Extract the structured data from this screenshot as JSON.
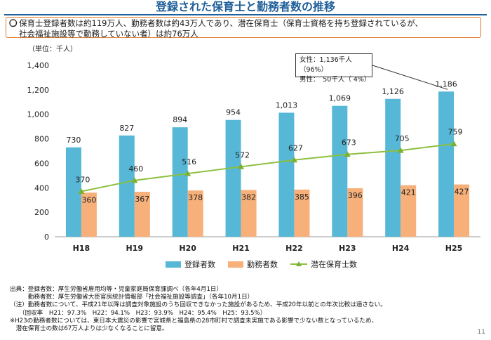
{
  "title": "登録された保育士と勤務者数の推移",
  "summary": {
    "mark": "〇",
    "line1": "保育士登録者数は約119万人、勤務者数は約43万人であり、潜在保育士（保育士資格を持ち登録されているが、",
    "line2": "社会福祉施設等で勤務していない者）は約76万人"
  },
  "callout": {
    "line1": "女性：1,136千人（96%）",
    "line2": "男性：　50千人（ 4%）"
  },
  "colors": {
    "registered": "#57b7d6",
    "employed": "#f7b07a",
    "potential": "#8cbf3f",
    "title": "#1f5f9a",
    "box_border": "#e07a2a"
  },
  "chart_data": {
    "type": "bar",
    "unit_label": "（単位：千人）",
    "categories": [
      "H18",
      "H19",
      "H20",
      "H21",
      "H22",
      "H23",
      "H24",
      "H25"
    ],
    "series": [
      {
        "name": "登録者数",
        "type": "bar",
        "values": [
          730,
          827,
          894,
          954,
          1013,
          1069,
          1126,
          1186
        ],
        "labels": [
          "730",
          "827",
          "894",
          "954",
          "1,013",
          "1,069",
          "1,126",
          "1,186"
        ]
      },
      {
        "name": "勤務者数",
        "type": "bar",
        "values": [
          360,
          367,
          378,
          382,
          385,
          396,
          421,
          427
        ],
        "labels": [
          "360",
          "367",
          "378",
          "382",
          "385",
          "396",
          "421",
          "427"
        ]
      },
      {
        "name": "潜在保育士数",
        "type": "line",
        "values": [
          370,
          460,
          516,
          572,
          627,
          673,
          705,
          759
        ],
        "labels": [
          "370",
          "460",
          "516",
          "572",
          "627",
          "673",
          "705",
          "759"
        ]
      }
    ],
    "ylim": [
      0,
      1400
    ],
    "yticks": [
      0,
      200,
      400,
      600,
      800,
      1000,
      1200,
      1400
    ],
    "ytick_labels": [
      "0",
      "200",
      "400",
      "600",
      "800",
      "1,000",
      "1,200",
      "1,400"
    ],
    "grid": false,
    "legend": "bottom"
  },
  "notes": [
    "出典：登録者数：厚生労働省雇用均等・児童家庭局保育課調べ（各年4月1日）",
    "　　　勤務者数：厚生労働省大臣官房統計情報部「社会福祉施設等調査」（各年10月1日）",
    "（注）勤務者数について、平成21年以降は調査対象施設のうち回収できなかった施設があるため、平成20年以前との年次比較は適さない。",
    "　　（回収率　H21：97.3%　H22：94.1%　H23：93.9%　H24：95.4%　H25：93.5%）",
    "※H23の勤務者数については、東日本大震災の影響で宮城県と福島県の28市町村で調査未実施である影響で少ない数となっているため、",
    "　潜在保育士の数は67万人よりは少なくなることに留意。"
  ],
  "page_number": "11"
}
